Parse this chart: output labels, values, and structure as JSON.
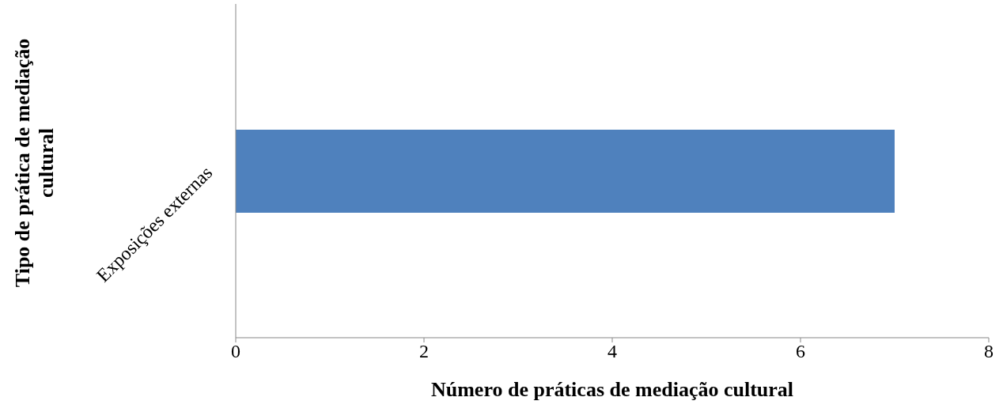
{
  "chart_data": {
    "type": "bar",
    "orientation": "horizontal",
    "categories": [
      "Exposições externas"
    ],
    "values": [
      7
    ],
    "color": "#4f81bd",
    "xlabel": "Número de práticas de mediação cultural",
    "ylabel": "Tipo de prática de mediação cultural",
    "xlim": [
      0,
      8
    ],
    "xticks": [
      0,
      2,
      4,
      6,
      8
    ],
    "grid": false,
    "legend": false
  }
}
